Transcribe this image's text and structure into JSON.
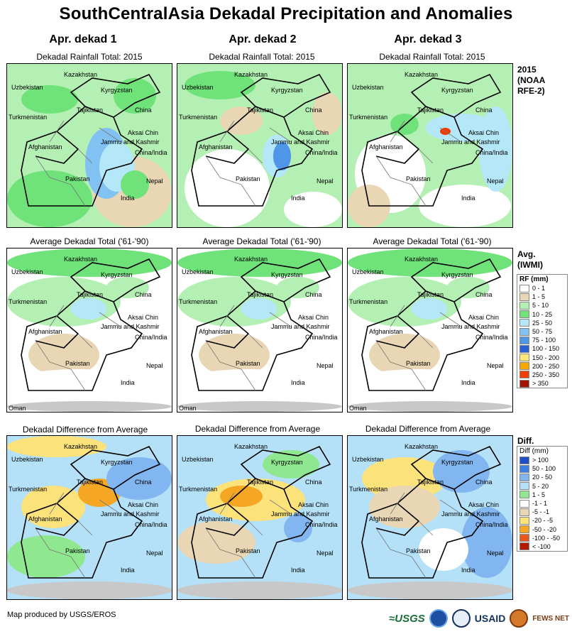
{
  "title": "SouthCentralAsia Dekadal Precipitation and Anomalies",
  "columns": [
    "Apr. dekad 1",
    "Apr. dekad 2",
    "Apr. dekad 3"
  ],
  "rows": [
    {
      "subtitle": "Dekadal Rainfall Total: 2015",
      "side_label": [
        "2015",
        "(NOAA",
        "RFE-2)"
      ]
    },
    {
      "subtitle": "Average Dekadal Total ('61-'90)",
      "side_label": [
        "Avg.",
        "(IWMI)"
      ]
    },
    {
      "subtitle": "Dekadal Difference from Average",
      "side_label": [
        "Diff."
      ]
    }
  ],
  "map_labels": {
    "kazakhstan": "Kazakhstan",
    "uzbekistan": "Uzbekistan",
    "kyrgyzstan": "Kyrgyzstan",
    "turkmenistan": "Turkmenistan",
    "tajikistan": "Tajikistan",
    "china": "China",
    "aksai_chin": "Aksai Chin",
    "jammu_kashmir": "Jammu and Kashmir",
    "china_india": "China/India",
    "afghanistan": "Afghanistan",
    "pakistan": "Pakistan",
    "nepal": "Nepal",
    "india": "India",
    "oman": "Oman"
  },
  "rf_legend": {
    "title": "RF (mm)",
    "items": [
      {
        "label": "0 - 1",
        "color": "#ffffff"
      },
      {
        "label": "1 - 5",
        "color": "#e8d6b5"
      },
      {
        "label": "5 - 10",
        "color": "#b4f0b4"
      },
      {
        "label": "10 - 25",
        "color": "#6fe27a"
      },
      {
        "label": "25 - 50",
        "color": "#b4e8f8"
      },
      {
        "label": "50 - 75",
        "color": "#82c2f2"
      },
      {
        "label": "75 - 100",
        "color": "#5096e8"
      },
      {
        "label": "100 - 150",
        "color": "#2a5fd6"
      },
      {
        "label": "150 - 200",
        "color": "#fce77a"
      },
      {
        "label": "200 - 250",
        "color": "#f7a800"
      },
      {
        "label": "250 - 350",
        "color": "#f23c00"
      },
      {
        "label": "> 350",
        "color": "#a31200"
      }
    ]
  },
  "diff_legend": {
    "title": "Diff (mm)",
    "items": [
      {
        "label": "> 100",
        "color": "#1f4fc6"
      },
      {
        "label": "50 - 100",
        "color": "#3f7fe4"
      },
      {
        "label": "20 - 50",
        "color": "#82b6f0"
      },
      {
        "label": "5 - 20",
        "color": "#b4e0f8"
      },
      {
        "label": "1 - 5",
        "color": "#8fe88f"
      },
      {
        "label": "-1 - 1",
        "color": "#ffffff"
      },
      {
        "label": "-5 - -1",
        "color": "#e8d6b5"
      },
      {
        "label": "-20 - -5",
        "color": "#fbe27a"
      },
      {
        "label": "-50 - -20",
        "color": "#f5a623"
      },
      {
        "label": "-100 - -50",
        "color": "#e8581c"
      },
      {
        "label": "< -100",
        "color": "#b21a00"
      }
    ]
  },
  "footer": "Map produced by USGS/EROS",
  "logos": {
    "usgs": "≈USGS",
    "usaid": "USAID",
    "fews": "FEWS NET"
  }
}
